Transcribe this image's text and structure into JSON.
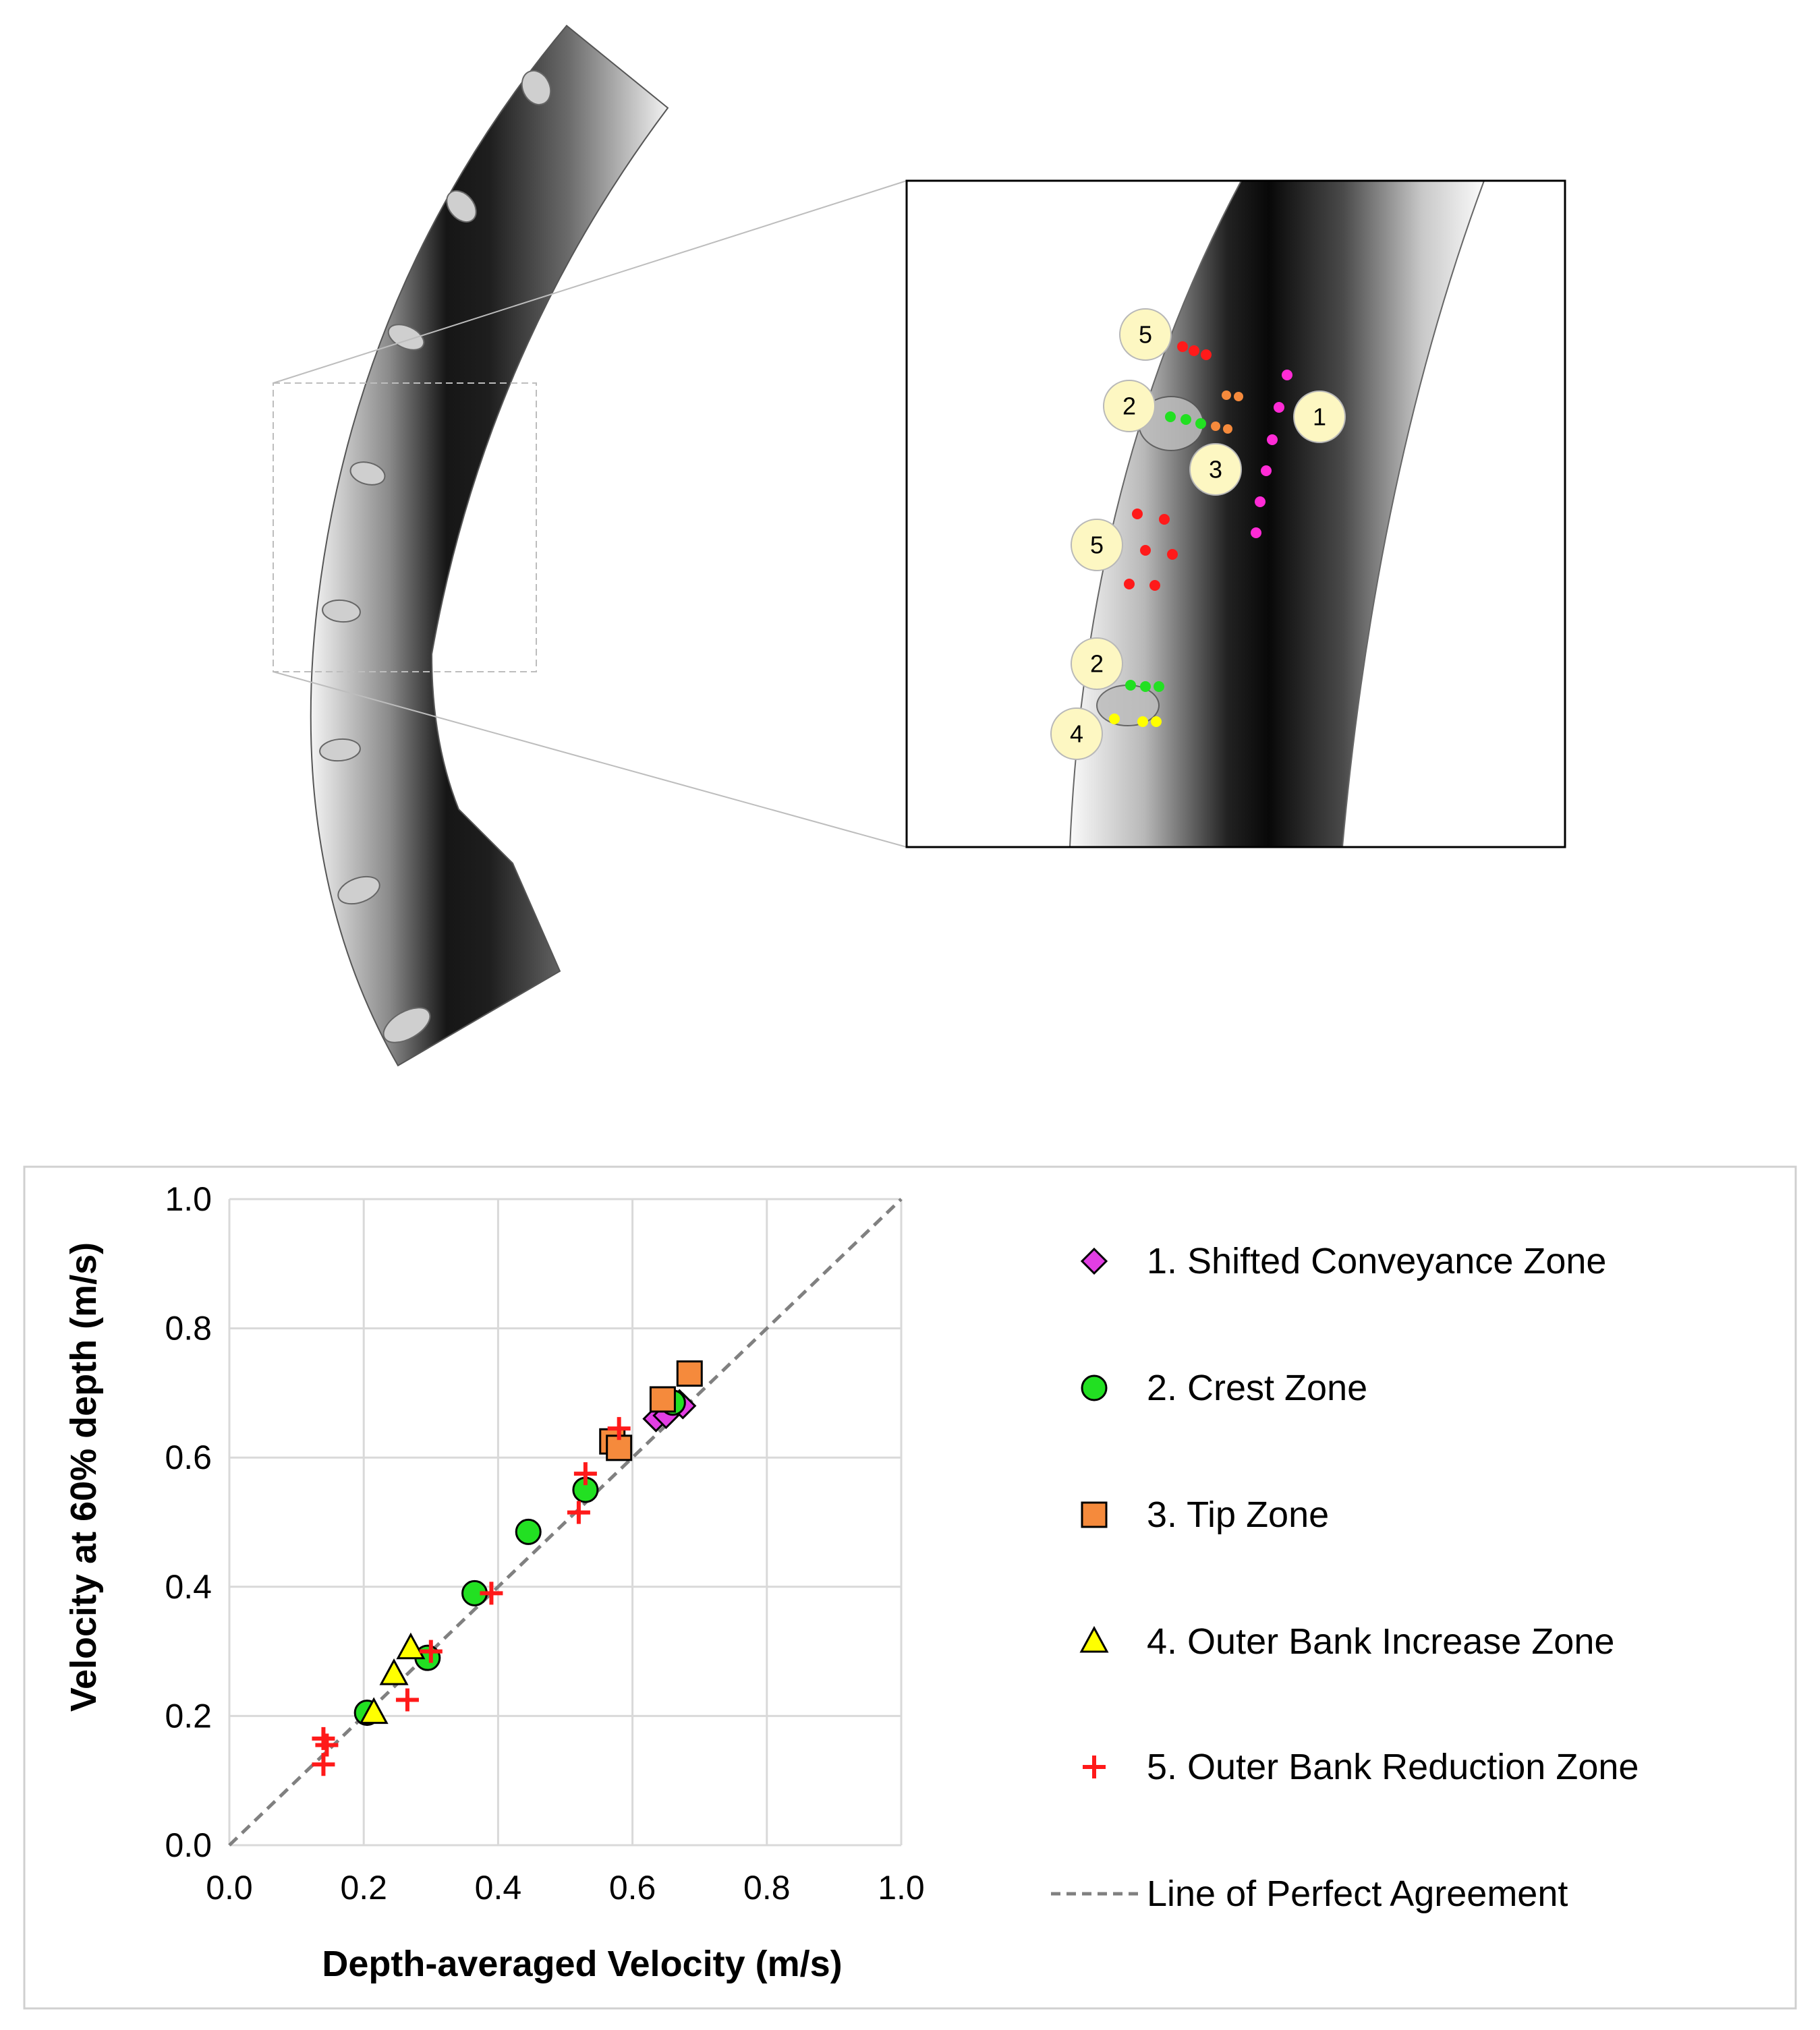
{
  "colors": {
    "shifted": "#e23ee3",
    "crest": "#22e022",
    "tip": "#f58a3c",
    "outer_increase": "#ffff00",
    "outer_reduction": "#ff1a1a",
    "diag": "#808080",
    "grid": "#d9d9d9",
    "badge": "#fdf7c2"
  },
  "inset_labels": [
    "5",
    "2",
    "1",
    "3",
    "5",
    "2",
    "4"
  ],
  "chart_data": {
    "type": "scatter",
    "title": "",
    "xlabel": "Depth-averaged Velocity (m/s)",
    "ylabel": "Velocity at 60% depth (m/s)",
    "xlim": [
      0.0,
      1.0
    ],
    "ylim": [
      0.0,
      1.0
    ],
    "x_ticks": [
      "0.0",
      "0.2",
      "0.4",
      "0.6",
      "0.8",
      "1.0"
    ],
    "y_ticks": [
      "0.0",
      "0.2",
      "0.4",
      "0.6",
      "0.8",
      "1.0"
    ],
    "grid": true,
    "legend_position": "right",
    "series": [
      {
        "name": "1. Shifted Conveyance Zone",
        "marker": "diamond",
        "color_key": "shifted",
        "points": [
          [
            0.635,
            0.66
          ],
          [
            0.65,
            0.665
          ],
          [
            0.67,
            0.685
          ],
          [
            0.675,
            0.68
          ]
        ]
      },
      {
        "name": "2. Crest Zone",
        "marker": "circle",
        "color_key": "crest",
        "points": [
          [
            0.205,
            0.205
          ],
          [
            0.295,
            0.29
          ],
          [
            0.365,
            0.39
          ],
          [
            0.445,
            0.485
          ],
          [
            0.53,
            0.55
          ],
          [
            0.66,
            0.685
          ]
        ]
      },
      {
        "name": "3. Tip Zone",
        "marker": "square",
        "color_key": "tip",
        "points": [
          [
            0.57,
            0.625
          ],
          [
            0.58,
            0.615
          ],
          [
            0.645,
            0.69
          ],
          [
            0.685,
            0.73
          ]
        ]
      },
      {
        "name": "4. Outer Bank Increase Zone",
        "marker": "triangle",
        "color_key": "outer_increase",
        "points": [
          [
            0.215,
            0.205
          ],
          [
            0.245,
            0.265
          ],
          [
            0.27,
            0.305
          ]
        ]
      },
      {
        "name": "5. Outer Bank Reduction Zone",
        "marker": "plus",
        "color_key": "outer_reduction",
        "points": [
          [
            0.14,
            0.125
          ],
          [
            0.14,
            0.165
          ],
          [
            0.145,
            0.155
          ],
          [
            0.265,
            0.225
          ],
          [
            0.3,
            0.3
          ],
          [
            0.39,
            0.39
          ],
          [
            0.52,
            0.515
          ],
          [
            0.53,
            0.575
          ],
          [
            0.58,
            0.645
          ]
        ]
      }
    ],
    "reference_line": {
      "name": "Line of Perfect Agreement",
      "style": "dashed",
      "from": [
        0.0,
        0.0
      ],
      "to": [
        1.0,
        1.0
      ]
    }
  }
}
